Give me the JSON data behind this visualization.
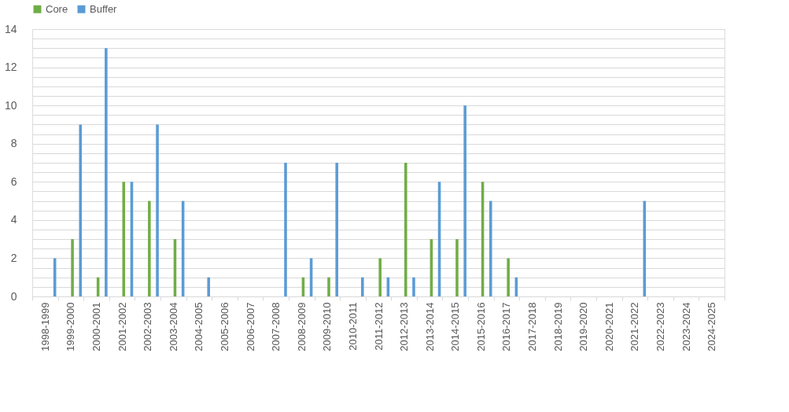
{
  "chart_data": {
    "type": "bar",
    "categories": [
      "1998-1999",
      "1999-2000",
      "2000-2001",
      "2001-2002",
      "2002-2003",
      "2003-2004",
      "2004-2005",
      "2005-2006",
      "2006-2007",
      "2007-2008",
      "2008-2009",
      "2009-2010",
      "2010-2011",
      "2011-2012",
      "2012-2013",
      "2013-2014",
      "2014-2015",
      "2015-2016",
      "2016-2017",
      "2017-2018",
      "2018-2019",
      "2019-2020",
      "2020-2021",
      "2021-2022",
      "2022-2023",
      "2023-2024",
      "2024-2025"
    ],
    "series": [
      {
        "name": "Core",
        "color": "#70ad47",
        "values": [
          0,
          3,
          1,
          6,
          5,
          3,
          0,
          0,
          0,
          0,
          1,
          1,
          0,
          2,
          7,
          3,
          3,
          6,
          2,
          0,
          0,
          0,
          0,
          0,
          0,
          0,
          0
        ]
      },
      {
        "name": "Buffer",
        "color": "#5b9bd5",
        "values": [
          2,
          9,
          13,
          6,
          9,
          5,
          1,
          0,
          0,
          7,
          2,
          7,
          1,
          1,
          1,
          6,
          10,
          5,
          1,
          0,
          0,
          0,
          0,
          5,
          0,
          0,
          0
        ]
      }
    ],
    "ylim": [
      0,
      14
    ],
    "yticks": [
      0,
      {
        "value": 0.5,
        "label": null
      },
      {
        "value": 1,
        "label": null
      },
      {
        "value": 1.5,
        "label": null
      },
      2,
      {
        "value": 2.5,
        "label": null
      },
      {
        "value": 3,
        "label": null
      },
      {
        "value": 3.5,
        "label": null
      },
      4,
      {
        "value": 4.5,
        "label": null
      },
      {
        "value": 5,
        "label": null
      },
      {
        "value": 5.5,
        "label": null
      },
      6,
      {
        "value": 6.5,
        "label": null
      },
      {
        "value": 7,
        "label": null
      },
      {
        "value": 7.5,
        "label": null
      },
      8,
      {
        "value": 8.5,
        "label": null
      },
      {
        "value": 9,
        "label": null
      },
      {
        "value": 9.5,
        "label": null
      },
      10,
      {
        "value": 10.5,
        "label": null
      },
      {
        "value": 11,
        "label": null
      },
      {
        "value": 11.5,
        "label": null
      },
      12,
      {
        "value": 12.5,
        "label": null
      },
      {
        "value": 13,
        "label": null
      },
      {
        "value": 13.5,
        "label": null
      },
      14
    ],
    "grid": "y",
    "legend": "top"
  }
}
